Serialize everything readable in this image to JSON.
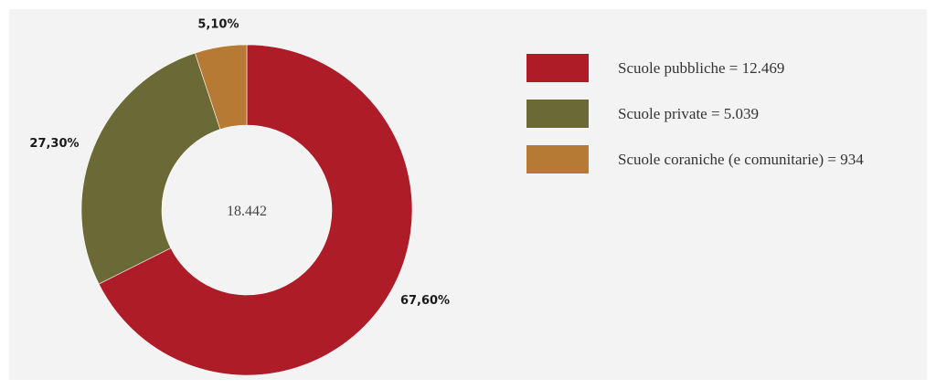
{
  "chart_data": {
    "type": "pie",
    "donut": true,
    "center_text": "18.442",
    "slices": [
      {
        "name": "Scuole pubbliche",
        "value": 12469,
        "percent_label": "67,60%",
        "color": "#ad1c27",
        "legend": "Scuole pubbliche = 12.469"
      },
      {
        "name": "Scuole private",
        "value": 5039,
        "percent_label": "27,30%",
        "color": "#6b6a37",
        "legend": "Scuole private = 5.039"
      },
      {
        "name": "Scuole coraniche (e comunitarie)",
        "value": 934,
        "percent_label": "5,10%",
        "color": "#b67a35",
        "legend": "Scuole coraniche (e comunitarie) = 934"
      }
    ],
    "legend_position": "right",
    "start": "top",
    "direction": "clockwise"
  }
}
